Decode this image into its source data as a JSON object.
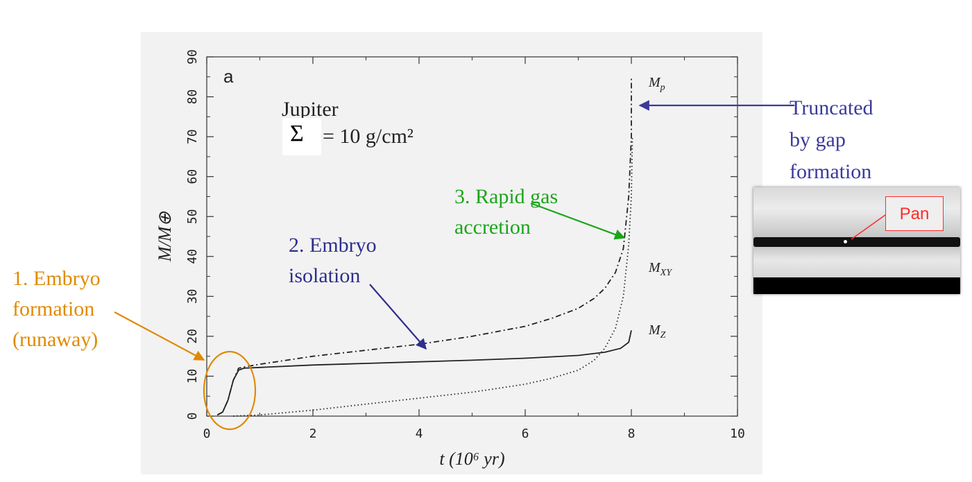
{
  "chart_data": {
    "type": "line",
    "panel_label": "a",
    "xlabel": "t (10⁶ yr)",
    "ylabel": "M/M⊕",
    "xlim": [
      0,
      10
    ],
    "ylim": [
      0,
      90
    ],
    "x_ticks": [
      "0",
      "2",
      "4",
      "6",
      "8",
      "10"
    ],
    "y_ticks": [
      "0",
      "10",
      "20",
      "30",
      "40",
      "50",
      "60",
      "70",
      "80",
      "90"
    ],
    "inner_label_line1": "Jupiter",
    "inner_label_sigma": "Σ",
    "inner_label_eq": "= 10 g/cm²",
    "series": [
      {
        "name": "Mp",
        "style": "dashdot",
        "x": [
          0.2,
          0.3,
          0.4,
          0.5,
          0.6,
          0.7,
          1,
          2,
          3,
          4,
          5,
          6,
          6.5,
          7,
          7.3,
          7.5,
          7.7,
          7.85,
          7.95,
          8.0,
          8.0
        ],
        "y": [
          0.3,
          1,
          4,
          9,
          12,
          12.3,
          13,
          15,
          16.5,
          18,
          20,
          22.5,
          24.5,
          27,
          29.5,
          32,
          36,
          42,
          55,
          70,
          85
        ]
      },
      {
        "name": "MXY",
        "style": "dotted",
        "x": [
          0.5,
          1,
          2,
          3,
          4,
          5,
          6,
          6.5,
          7,
          7.3,
          7.5,
          7.7,
          7.85,
          7.95,
          8.0,
          8.02
        ],
        "y": [
          0,
          0.3,
          1.5,
          3,
          4.5,
          6,
          8,
          9.5,
          11.5,
          14,
          17,
          22,
          30,
          43,
          55,
          70
        ]
      },
      {
        "name": "MZ",
        "style": "solid",
        "x": [
          0.2,
          0.3,
          0.4,
          0.5,
          0.6,
          0.7,
          1,
          2,
          3,
          4,
          5,
          6,
          7,
          7.5,
          7.8,
          7.95,
          8.0
        ],
        "y": [
          0.3,
          1,
          4,
          9,
          11.5,
          12,
          12.2,
          12.8,
          13.2,
          13.6,
          14,
          14.5,
          15.2,
          16,
          17,
          18.5,
          21.5
        ]
      }
    ],
    "curve_labels": {
      "mp": "M",
      "mp_sub": "p",
      "mxy": "M",
      "mxy_sub": "XY",
      "mz": "M",
      "mz_sub": "Z"
    }
  },
  "annotations": {
    "embryo": [
      "1. Embryo",
      "formation",
      "(runaway)"
    ],
    "isolation": [
      "2. Embryo",
      "isolation"
    ],
    "gas": [
      "3. Rapid gas",
      "accretion"
    ],
    "truncated": [
      "Truncated",
      "by gap",
      "formation"
    ]
  },
  "colors": {
    "embryo": "#e08a00",
    "isolation": "#2e2e8c",
    "gas": "#1aa51a",
    "truncated": "#3a3a9c",
    "pan": "#ff2a2a"
  },
  "inset": {
    "label": "Pan"
  }
}
